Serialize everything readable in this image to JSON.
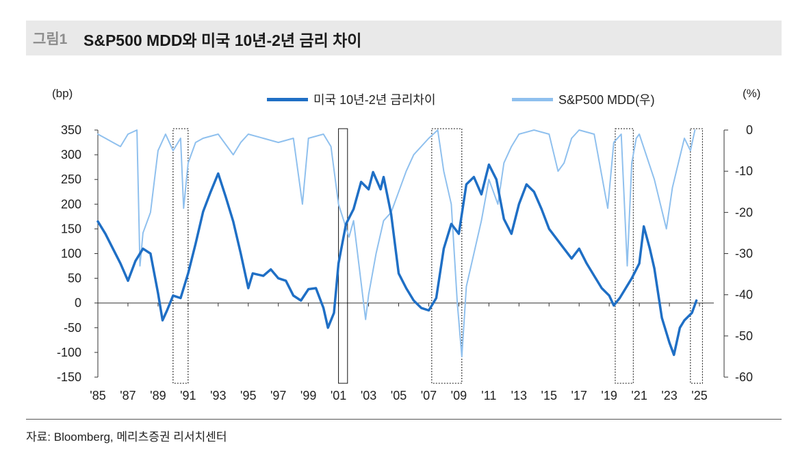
{
  "figure": {
    "number": "그림1",
    "title": "S&P500 MDD와 미국 10년-2년 금리 차이"
  },
  "source": "자료: Bloomberg, 메리츠증권 리서치센터",
  "colors": {
    "spread": "#1f6fc5",
    "mdd": "#8fc0ee",
    "axis": "#333333"
  },
  "chart_data": {
    "type": "line",
    "title": "S&P500 MDD와 미국 10년-2년 금리 차이",
    "left_axis": {
      "unit": "(bp)",
      "range": [
        -150,
        350
      ],
      "ticks": [
        "350",
        "300",
        "250",
        "200",
        "150",
        "100",
        "50",
        "0",
        "-50",
        "-100",
        "-150"
      ]
    },
    "right_axis": {
      "unit": "(%)",
      "range": [
        -60,
        0
      ],
      "ticks": [
        "0",
        "-10",
        "-20",
        "-30",
        "-40",
        "-50",
        "-60"
      ]
    },
    "x_range": [
      1985,
      2025.5
    ],
    "x_ticks": [
      {
        "year": 1985,
        "label": "'85"
      },
      {
        "year": 1987,
        "label": "'87"
      },
      {
        "year": 1989,
        "label": "'89"
      },
      {
        "year": 1991,
        "label": "'91"
      },
      {
        "year": 1993,
        "label": "'93"
      },
      {
        "year": 1995,
        "label": "'95"
      },
      {
        "year": 1997,
        "label": "'97"
      },
      {
        "year": 1999,
        "label": "'99"
      },
      {
        "year": 2001,
        "label": "'01"
      },
      {
        "year": 2003,
        "label": "'03"
      },
      {
        "year": 2005,
        "label": "'05"
      },
      {
        "year": 2007,
        "label": "'07"
      },
      {
        "year": 2009,
        "label": "'09"
      },
      {
        "year": 2011,
        "label": "'11"
      },
      {
        "year": 2013,
        "label": "'13"
      },
      {
        "year": 2015,
        "label": "'15"
      },
      {
        "year": 2017,
        "label": "'17"
      },
      {
        "year": 2019,
        "label": "'19"
      },
      {
        "year": 2021,
        "label": "'21"
      },
      {
        "year": 2023,
        "label": "'23"
      },
      {
        "year": 2025,
        "label": "'25"
      }
    ],
    "legend_position": "top-center",
    "series": [
      {
        "name": "미국 10년-2년 금리차이",
        "axis": "left",
        "color": "#1f6fc5",
        "points": [
          [
            1985,
            165
          ],
          [
            1985.5,
            140
          ],
          [
            1986,
            110
          ],
          [
            1986.5,
            80
          ],
          [
            1987,
            45
          ],
          [
            1987.5,
            85
          ],
          [
            1988,
            110
          ],
          [
            1988.5,
            100
          ],
          [
            1989,
            20
          ],
          [
            1989.3,
            -35
          ],
          [
            1989.6,
            -15
          ],
          [
            1990,
            15
          ],
          [
            1990.5,
            10
          ],
          [
            1991,
            60
          ],
          [
            1991.5,
            120
          ],
          [
            1992,
            185
          ],
          [
            1992.5,
            225
          ],
          [
            1993,
            262
          ],
          [
            1993.5,
            215
          ],
          [
            1994,
            165
          ],
          [
            1994.5,
            100
          ],
          [
            1995,
            30
          ],
          [
            1995.3,
            60
          ],
          [
            1996,
            55
          ],
          [
            1996.5,
            68
          ],
          [
            1997,
            50
          ],
          [
            1997.5,
            45
          ],
          [
            1998,
            15
          ],
          [
            1998.5,
            5
          ],
          [
            1999,
            28
          ],
          [
            1999.5,
            30
          ],
          [
            2000,
            -10
          ],
          [
            2000.3,
            -50
          ],
          [
            2000.7,
            -20
          ],
          [
            2001,
            80
          ],
          [
            2001.5,
            160
          ],
          [
            2002,
            190
          ],
          [
            2002.5,
            245
          ],
          [
            2003,
            230
          ],
          [
            2003.3,
            265
          ],
          [
            2003.8,
            230
          ],
          [
            2004,
            255
          ],
          [
            2004.5,
            180
          ],
          [
            2005,
            60
          ],
          [
            2005.5,
            30
          ],
          [
            2006,
            5
          ],
          [
            2006.5,
            -10
          ],
          [
            2007,
            -15
          ],
          [
            2007.5,
            10
          ],
          [
            2008,
            110
          ],
          [
            2008.5,
            160
          ],
          [
            2009,
            140
          ],
          [
            2009.5,
            240
          ],
          [
            2010,
            255
          ],
          [
            2010.5,
            220
          ],
          [
            2011,
            280
          ],
          [
            2011.5,
            250
          ],
          [
            2012,
            170
          ],
          [
            2012.5,
            140
          ],
          [
            2013,
            200
          ],
          [
            2013.5,
            240
          ],
          [
            2014,
            225
          ],
          [
            2014.5,
            190
          ],
          [
            2015,
            150
          ],
          [
            2015.5,
            130
          ],
          [
            2016,
            110
          ],
          [
            2016.5,
            90
          ],
          [
            2017,
            110
          ],
          [
            2017.5,
            80
          ],
          [
            2018,
            55
          ],
          [
            2018.5,
            30
          ],
          [
            2019,
            15
          ],
          [
            2019.3,
            -5
          ],
          [
            2019.7,
            10
          ],
          [
            2020,
            25
          ],
          [
            2020.5,
            50
          ],
          [
            2021,
            80
          ],
          [
            2021.3,
            155
          ],
          [
            2021.7,
            110
          ],
          [
            2022,
            70
          ],
          [
            2022.5,
            -30
          ],
          [
            2023,
            -80
          ],
          [
            2023.3,
            -105
          ],
          [
            2023.7,
            -50
          ],
          [
            2024,
            -35
          ],
          [
            2024.5,
            -20
          ],
          [
            2024.8,
            5
          ]
        ]
      },
      {
        "name": "S&P500 MDD(우)",
        "axis": "right",
        "color": "#8fc0ee",
        "points": [
          [
            1985,
            -1
          ],
          [
            1985.5,
            -2
          ],
          [
            1986,
            -3
          ],
          [
            1986.5,
            -4
          ],
          [
            1987,
            -1
          ],
          [
            1987.6,
            0
          ],
          [
            1987.8,
            -33
          ],
          [
            1988,
            -25
          ],
          [
            1988.5,
            -20
          ],
          [
            1989,
            -5
          ],
          [
            1989.5,
            -1
          ],
          [
            1990,
            -5
          ],
          [
            1990.5,
            -2
          ],
          [
            1990.7,
            -19
          ],
          [
            1991,
            -8
          ],
          [
            1991.5,
            -3
          ],
          [
            1992,
            -2
          ],
          [
            1993,
            -1
          ],
          [
            1994,
            -6
          ],
          [
            1994.5,
            -3
          ],
          [
            1995,
            -1
          ],
          [
            1996,
            -2
          ],
          [
            1997,
            -3
          ],
          [
            1998,
            -2
          ],
          [
            1998.6,
            -18
          ],
          [
            1999,
            -2
          ],
          [
            2000,
            -1
          ],
          [
            2000.5,
            -4
          ],
          [
            2001,
            -18
          ],
          [
            2001.7,
            -26
          ],
          [
            2002,
            -22
          ],
          [
            2002.8,
            -46
          ],
          [
            2003,
            -40
          ],
          [
            2003.5,
            -30
          ],
          [
            2004,
            -22
          ],
          [
            2004.5,
            -20
          ],
          [
            2005,
            -15
          ],
          [
            2005.5,
            -10
          ],
          [
            2006,
            -6
          ],
          [
            2007,
            -2
          ],
          [
            2007.6,
            0
          ],
          [
            2008,
            -10
          ],
          [
            2008.5,
            -18
          ],
          [
            2008.9,
            -42
          ],
          [
            2009.2,
            -55
          ],
          [
            2009.5,
            -38
          ],
          [
            2010,
            -30
          ],
          [
            2010.5,
            -22
          ],
          [
            2011,
            -12
          ],
          [
            2011.6,
            -18
          ],
          [
            2012,
            -8
          ],
          [
            2012.5,
            -4
          ],
          [
            2013,
            -1
          ],
          [
            2014,
            0
          ],
          [
            2015,
            -1
          ],
          [
            2015.6,
            -10
          ],
          [
            2016,
            -8
          ],
          [
            2016.5,
            -2
          ],
          [
            2017,
            0
          ],
          [
            2018,
            -1
          ],
          [
            2018.9,
            -19
          ],
          [
            2019.3,
            -3
          ],
          [
            2019.8,
            -1
          ],
          [
            2020.2,
            -33
          ],
          [
            2020.5,
            -8
          ],
          [
            2020.8,
            -2
          ],
          [
            2021,
            -1
          ],
          [
            2022,
            -12
          ],
          [
            2022.4,
            -18
          ],
          [
            2022.8,
            -24
          ],
          [
            2023.2,
            -14
          ],
          [
            2023.6,
            -8
          ],
          [
            2024,
            -2
          ],
          [
            2024.4,
            -5
          ],
          [
            2024.7,
            0
          ]
        ]
      }
    ],
    "shaded_periods": [
      [
        1990.0,
        1991.0
      ],
      [
        2001.0,
        2001.6
      ],
      [
        2007.2,
        2009.2
      ],
      [
        2019.4,
        2020.6
      ],
      [
        2024.4,
        2025.2
      ]
    ]
  }
}
